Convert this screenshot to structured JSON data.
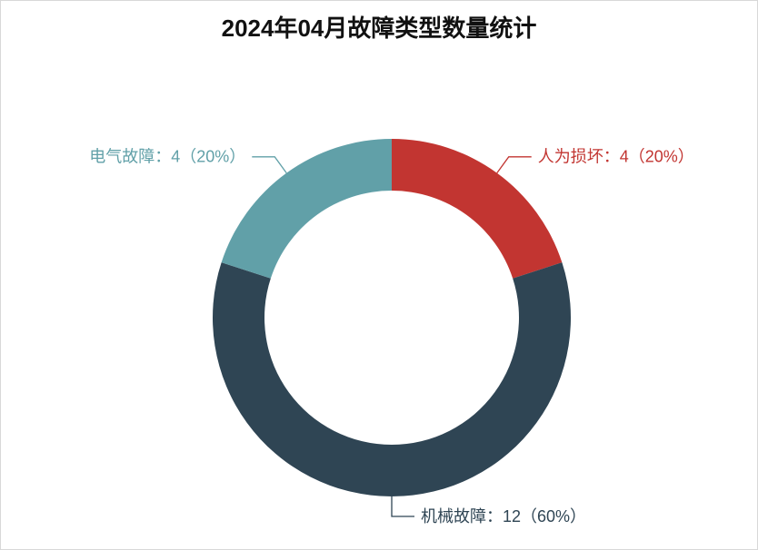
{
  "chart_data": {
    "type": "pie",
    "title": "2024年04月故障类型数量统计",
    "labels": [
      "人为损坏：4（20%）",
      "机械故障：12（60%）",
      "电气故障：4（20%）"
    ],
    "values": [
      4,
      12,
      4
    ],
    "colors": [
      "#c23531",
      "#2f4554",
      "#61a0a8"
    ],
    "donut": true
  }
}
